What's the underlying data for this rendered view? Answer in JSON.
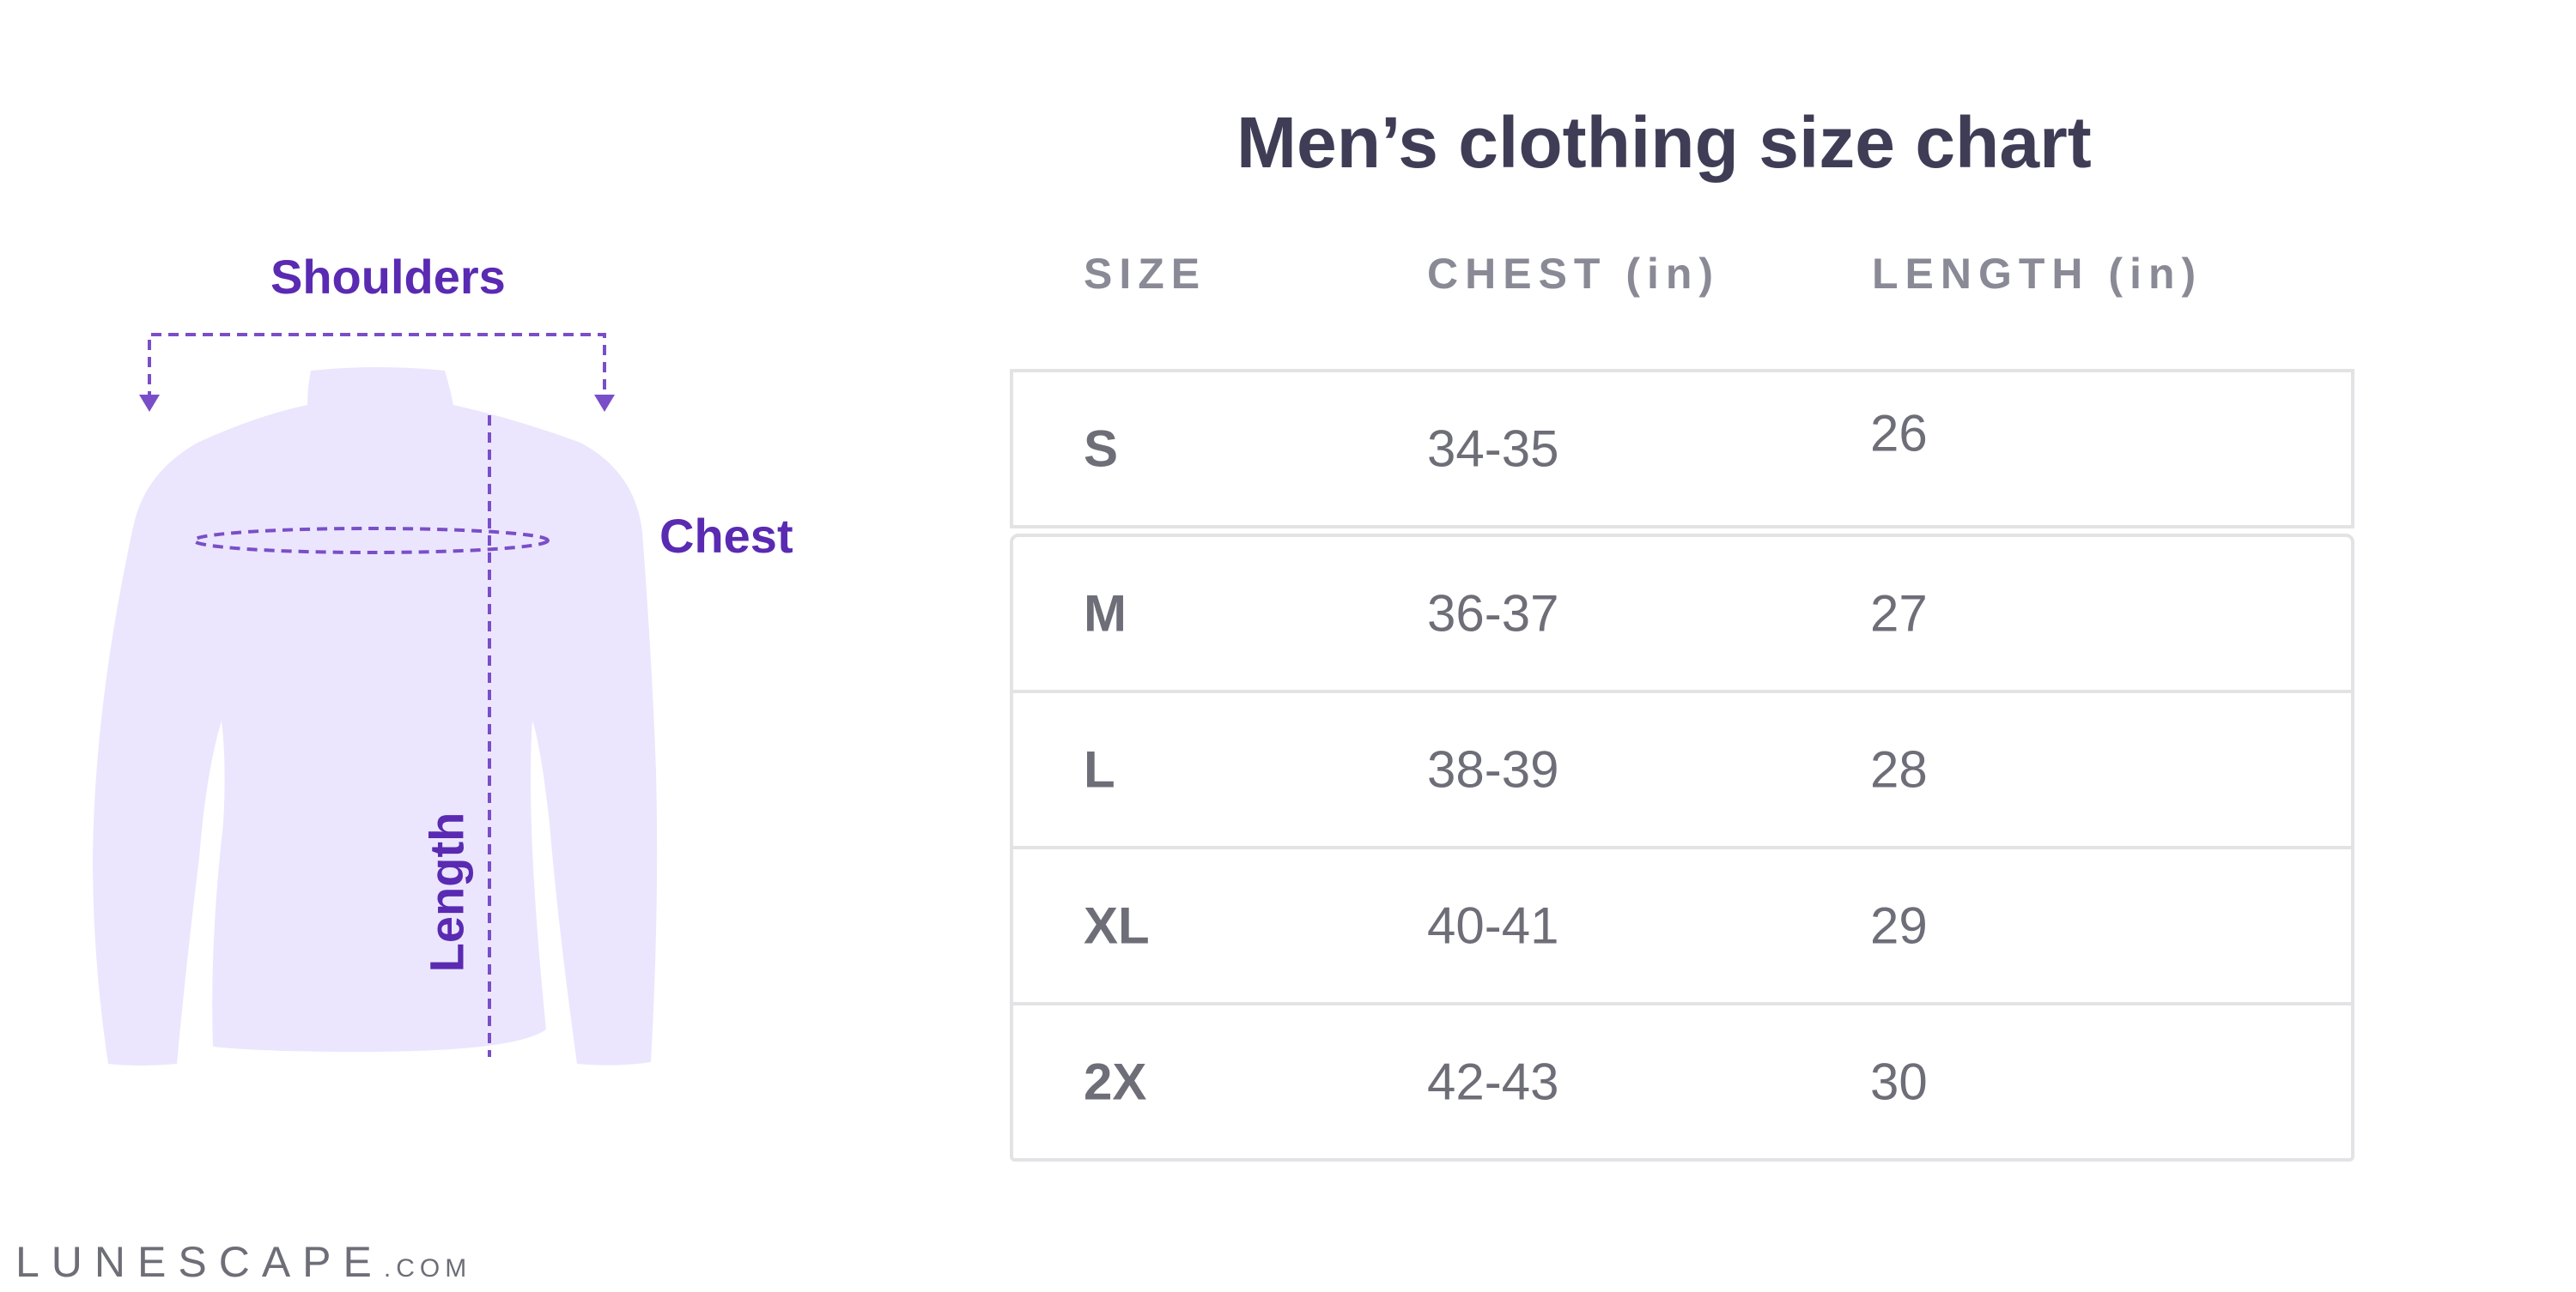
{
  "diagram": {
    "shoulders_label": "Shoulders",
    "chest_label": "Chest",
    "length_label": "Length",
    "shirt_color": "#ebe6fd",
    "line_color": "#7a4ec8",
    "label_color": "#5a2ab2"
  },
  "size_chart": {
    "title": "Men’s clothing size chart",
    "columns": [
      "SIZE",
      "CHEST (in)",
      "LENGTH (in)"
    ],
    "rows": [
      {
        "size": "S",
        "chest": "34-35",
        "length": "26"
      },
      {
        "size": "M",
        "chest": "36-37",
        "length": "27"
      },
      {
        "size": "L",
        "chest": "38-39",
        "length": "28"
      },
      {
        "size": "XL",
        "chest": "40-41",
        "length": "29"
      },
      {
        "size": "2X",
        "chest": "42-43",
        "length": "30"
      }
    ]
  },
  "branding": {
    "name": "LUNESCAPE",
    "suffix": ".COM"
  }
}
